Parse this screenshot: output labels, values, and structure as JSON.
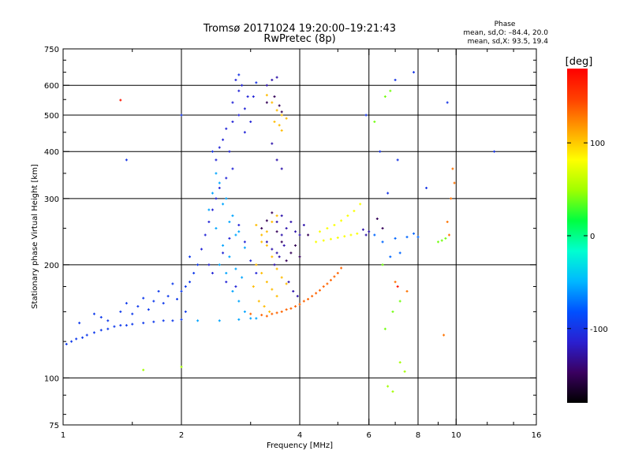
{
  "header": {
    "title_line1": "Tromsø 20171024 19:20:00–19:21:43",
    "title_line2": "RwPretec (8p)",
    "phase_heading": "Phase",
    "phase_o_line": "mean, sd,O: –84.4, 20.0",
    "phase_x_line": "mean, sd,X:  93.5, 19.4"
  },
  "chart_data": {
    "type": "scatter",
    "title": "Tromsø 20171024 19:20:00–19:21:43",
    "subtitle": "RwPretec (8p)",
    "xlabel": "Frequency [MHz]",
    "ylabel": "Stationary phase Virtual Height [km]",
    "x_scale": "log",
    "y_scale": "log",
    "xlim": [
      1,
      16
    ],
    "ylim": [
      75,
      750
    ],
    "x_ticks": [
      1,
      2,
      4,
      6,
      8,
      10,
      16
    ],
    "x_tick_labels": [
      "1",
      "2",
      "4",
      "6",
      "8",
      "10",
      "16"
    ],
    "x_minor_ticks": [
      1.5,
      3,
      5,
      7,
      9,
      12,
      14
    ],
    "y_ticks": [
      75,
      100,
      200,
      300,
      400,
      500,
      600,
      750
    ],
    "y_tick_labels": [
      "75",
      "100",
      "200",
      "300",
      "400",
      "500",
      "600",
      "750"
    ],
    "y_minor_ticks": [
      80,
      90,
      125,
      150,
      175,
      250,
      350,
      450,
      550,
      650,
      700
    ],
    "grid": true,
    "colorbar": {
      "label": "[deg]",
      "range": [
        -180,
        180
      ],
      "ticks": [
        100,
        0,
        -100
      ],
      "tick_labels": [
        "100",
        "0",
        "-100"
      ],
      "colormap": [
        "#000000",
        "#3a0060",
        "#2a1fd0",
        "#0050ff",
        "#00b8ff",
        "#00ffd0",
        "#00ff40",
        "#a0ff00",
        "#ffff00",
        "#ffa000",
        "#ff4000",
        "#ff0000"
      ]
    },
    "series": [
      {
        "phase_deg": -95,
        "points": [
          [
            1.02,
            123
          ],
          [
            1.05,
            125
          ],
          [
            1.08,
            127
          ],
          [
            1.12,
            128
          ],
          [
            1.15,
            130
          ],
          [
            1.2,
            132
          ],
          [
            1.25,
            134
          ],
          [
            1.3,
            135
          ],
          [
            1.35,
            137
          ],
          [
            1.4,
            138
          ],
          [
            1.45,
            138
          ],
          [
            1.5,
            139
          ],
          [
            1.6,
            140
          ],
          [
            1.7,
            141
          ],
          [
            1.8,
            142
          ],
          [
            1.9,
            142
          ],
          [
            2.0,
            143
          ],
          [
            1.1,
            140
          ],
          [
            1.25,
            145
          ],
          [
            1.4,
            150
          ],
          [
            1.55,
            155
          ],
          [
            1.7,
            160
          ],
          [
            1.85,
            165
          ],
          [
            2.0,
            170
          ],
          [
            1.3,
            142
          ],
          [
            1.5,
            148
          ],
          [
            1.65,
            152
          ],
          [
            1.8,
            158
          ],
          [
            1.95,
            162
          ],
          [
            2.05,
            175
          ],
          [
            2.1,
            180
          ],
          [
            2.15,
            190
          ],
          [
            2.2,
            200
          ],
          [
            1.2,
            148
          ],
          [
            1.45,
            158
          ],
          [
            1.6,
            163
          ],
          [
            1.75,
            170
          ],
          [
            2.05,
            150
          ],
          [
            1.9,
            178
          ],
          [
            2.1,
            210
          ]
        ]
      },
      {
        "phase_deg": -110,
        "points": [
          [
            2.25,
            220
          ],
          [
            2.3,
            240
          ],
          [
            2.35,
            260
          ],
          [
            2.4,
            280
          ],
          [
            2.45,
            300
          ],
          [
            2.5,
            320
          ],
          [
            2.6,
            340
          ],
          [
            2.7,
            360
          ],
          [
            2.55,
            430
          ],
          [
            2.6,
            460
          ],
          [
            2.7,
            480
          ],
          [
            2.8,
            500
          ],
          [
            2.9,
            520
          ],
          [
            2.95,
            560
          ],
          [
            2.85,
            600
          ],
          [
            2.75,
            620
          ],
          [
            3.0,
            480
          ],
          [
            2.65,
            400
          ],
          [
            2.45,
            380
          ],
          [
            2.5,
            410
          ],
          [
            2.7,
            540
          ],
          [
            2.8,
            580
          ],
          [
            3.05,
            560
          ],
          [
            2.9,
            450
          ],
          [
            2.35,
            200
          ],
          [
            2.4,
            190
          ],
          [
            2.55,
            215
          ],
          [
            2.65,
            235
          ],
          [
            2.8,
            255
          ],
          [
            2.9,
            230
          ],
          [
            3.0,
            205
          ],
          [
            3.1,
            190
          ],
          [
            2.6,
            180
          ],
          [
            2.75,
            175
          ]
        ]
      },
      {
        "phase_deg": -55,
        "points": [
          [
            2.35,
            280
          ],
          [
            2.45,
            250
          ],
          [
            2.55,
            225
          ],
          [
            2.65,
            210
          ],
          [
            2.75,
            195
          ],
          [
            2.85,
            185
          ],
          [
            2.4,
            310
          ],
          [
            2.5,
            330
          ],
          [
            2.6,
            300
          ],
          [
            2.7,
            270
          ],
          [
            2.8,
            245
          ],
          [
            2.9,
            222
          ],
          [
            2.45,
            350
          ],
          [
            2.55,
            290
          ],
          [
            2.65,
            260
          ],
          [
            2.75,
            240
          ],
          [
            2.5,
            200
          ],
          [
            2.6,
            190
          ],
          [
            2.7,
            170
          ],
          [
            2.8,
            160
          ],
          [
            2.9,
            150
          ],
          [
            3.0,
            144
          ],
          [
            2.2,
            142
          ],
          [
            2.5,
            142
          ],
          [
            2.8,
            143
          ],
          [
            3.1,
            144
          ]
        ]
      },
      {
        "phase_deg": 105,
        "points": [
          [
            3.1,
            255
          ],
          [
            3.2,
            240
          ],
          [
            3.3,
            225
          ],
          [
            3.4,
            210
          ],
          [
            3.5,
            195
          ],
          [
            3.6,
            185
          ],
          [
            3.7,
            178
          ],
          [
            3.1,
            200
          ],
          [
            3.2,
            190
          ],
          [
            3.3,
            180
          ],
          [
            3.4,
            172
          ],
          [
            3.5,
            165
          ],
          [
            3.15,
            160
          ],
          [
            3.25,
            155
          ],
          [
            3.35,
            150
          ],
          [
            3.05,
            175
          ],
          [
            3.3,
            565
          ],
          [
            3.4,
            540
          ],
          [
            3.5,
            515
          ],
          [
            3.6,
            500
          ],
          [
            3.7,
            490
          ],
          [
            3.45,
            480
          ],
          [
            3.55,
            470
          ],
          [
            3.6,
            455
          ],
          [
            3.2,
            230
          ],
          [
            3.3,
            245
          ],
          [
            3.4,
            260
          ],
          [
            3.5,
            270
          ]
        ]
      },
      {
        "phase_deg": 135,
        "points": [
          [
            3.0,
            148
          ],
          [
            3.2,
            147
          ],
          [
            3.4,
            148
          ],
          [
            3.6,
            150
          ],
          [
            3.8,
            153
          ],
          [
            4.0,
            157
          ],
          [
            4.2,
            162
          ],
          [
            4.4,
            168
          ],
          [
            4.6,
            175
          ],
          [
            4.8,
            182
          ],
          [
            5.0,
            190
          ],
          [
            5.1,
            196
          ],
          [
            3.3,
            146
          ],
          [
            3.5,
            149
          ],
          [
            3.7,
            152
          ],
          [
            3.9,
            155
          ],
          [
            4.1,
            160
          ],
          [
            4.3,
            165
          ],
          [
            4.5,
            171
          ],
          [
            4.7,
            178
          ],
          [
            4.9,
            186
          ]
        ]
      },
      {
        "phase_deg": 80,
        "points": [
          [
            4.4,
            230
          ],
          [
            4.6,
            232
          ],
          [
            4.8,
            234
          ],
          [
            5.0,
            236
          ],
          [
            5.2,
            238
          ],
          [
            5.4,
            240
          ],
          [
            5.6,
            242
          ],
          [
            4.5,
            245
          ],
          [
            4.7,
            250
          ],
          [
            4.9,
            255
          ],
          [
            5.1,
            262
          ],
          [
            5.3,
            270
          ],
          [
            5.5,
            278
          ],
          [
            5.7,
            290
          ]
        ]
      },
      {
        "phase_deg": -125,
        "points": [
          [
            3.3,
            230
          ],
          [
            3.4,
            220
          ],
          [
            3.5,
            215
          ],
          [
            3.6,
            240
          ],
          [
            3.7,
            250
          ],
          [
            3.8,
            260
          ],
          [
            3.9,
            245
          ],
          [
            3.5,
            260
          ],
          [
            3.6,
            270
          ],
          [
            3.45,
            200
          ],
          [
            3.55,
            210
          ],
          [
            3.65,
            225
          ],
          [
            3.75,
            180
          ],
          [
            3.85,
            170
          ],
          [
            3.95,
            165
          ],
          [
            4.0,
            240
          ],
          [
            4.1,
            255
          ],
          [
            5.8,
            248
          ],
          [
            5.9,
            240
          ],
          [
            6.0,
            245
          ],
          [
            3.5,
            380
          ],
          [
            3.6,
            360
          ],
          [
            3.4,
            420
          ],
          [
            3.3,
            600
          ],
          [
            3.4,
            620
          ],
          [
            3.5,
            630
          ]
        ]
      },
      {
        "phase_deg": -150,
        "points": [
          [
            3.2,
            250
          ],
          [
            3.3,
            262
          ],
          [
            3.4,
            275
          ],
          [
            3.5,
            245
          ],
          [
            3.6,
            230
          ],
          [
            3.7,
            205
          ],
          [
            3.8,
            215
          ],
          [
            3.9,
            225
          ],
          [
            4.0,
            210
          ],
          [
            4.2,
            240
          ],
          [
            3.3,
            540
          ],
          [
            3.45,
            560
          ],
          [
            3.55,
            530
          ],
          [
            3.6,
            510
          ],
          [
            6.3,
            265
          ],
          [
            6.5,
            250
          ]
        ]
      },
      {
        "phase_deg": -75,
        "points": [
          [
            6.5,
            230
          ],
          [
            7.0,
            235
          ],
          [
            7.5,
            237
          ],
          [
            8.0,
            237
          ],
          [
            6.8,
            210
          ],
          [
            7.2,
            215
          ],
          [
            6.2,
            240
          ],
          [
            7.8,
            242
          ]
        ]
      },
      {
        "phase_deg": 40,
        "points": [
          [
            9.0,
            230
          ],
          [
            9.2,
            232
          ],
          [
            9.4,
            235
          ],
          [
            6.6,
            560
          ],
          [
            6.8,
            580
          ],
          [
            6.2,
            480
          ],
          [
            6.5,
            200
          ],
          [
            6.9,
            150
          ],
          [
            7.2,
            160
          ],
          [
            6.6,
            135
          ]
        ]
      },
      {
        "phase_deg": 130,
        "points": [
          [
            9.8,
            360
          ],
          [
            9.9,
            330
          ],
          [
            9.7,
            300
          ],
          [
            9.5,
            260
          ],
          [
            9.6,
            240
          ],
          [
            7.0,
            180
          ],
          [
            7.5,
            170
          ],
          [
            9.3,
            130
          ]
        ]
      },
      {
        "phase_deg": -100,
        "points": [
          [
            1.45,
            380
          ],
          [
            2.0,
            500
          ],
          [
            2.4,
            400
          ],
          [
            5.9,
            500
          ],
          [
            6.4,
            400
          ],
          [
            6.7,
            310
          ],
          [
            7.1,
            380
          ],
          [
            7.8,
            650
          ],
          [
            8.4,
            320
          ],
          [
            9.5,
            540
          ],
          [
            12.5,
            400
          ],
          [
            7.0,
            620
          ],
          [
            2.8,
            640
          ],
          [
            3.1,
            610
          ]
        ]
      },
      {
        "phase_deg": 50,
        "points": [
          [
            7.2,
            110
          ],
          [
            7.4,
            104
          ],
          [
            6.9,
            92
          ],
          [
            6.7,
            95
          ],
          [
            1.6,
            105
          ],
          [
            2.0,
            107
          ]
        ]
      },
      {
        "phase_deg": 170,
        "points": [
          [
            1.4,
            548
          ],
          [
            7.1,
            175
          ]
        ]
      }
    ]
  }
}
